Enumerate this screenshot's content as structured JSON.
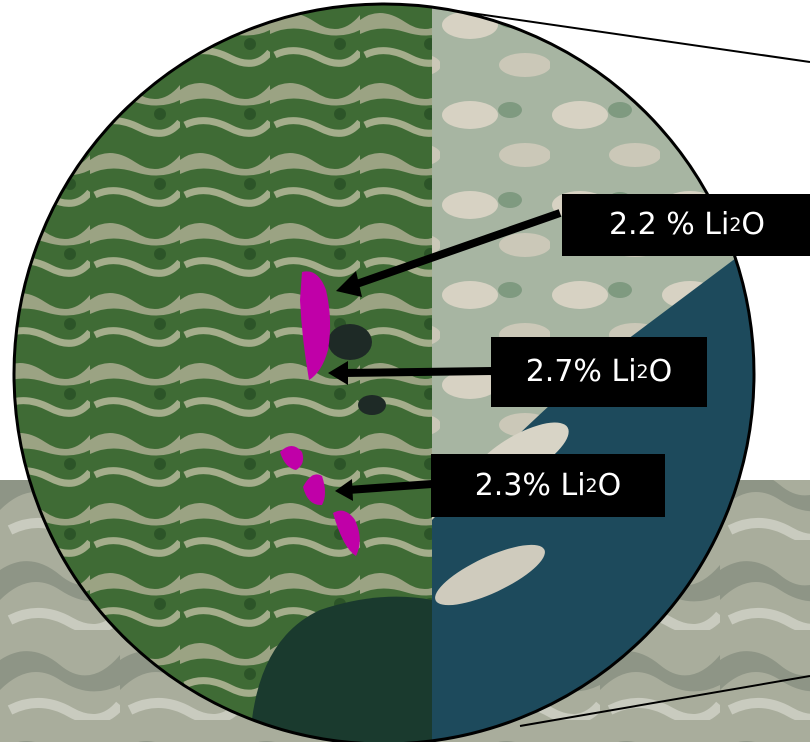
{
  "map": {
    "grade_labels": [
      {
        "value": "2.2 %",
        "species_main": "Li",
        "species_sub": "2",
        "species_tail": "O"
      },
      {
        "value": "2.7%",
        "species_main": "Li",
        "species_sub": "2",
        "species_tail": "O"
      },
      {
        "value": "2.3%",
        "species_main": "Li",
        "species_sub": "2",
        "species_tail": "O"
      }
    ],
    "colors": {
      "forest": "#3f6b35",
      "outcrop": "#b9b59d",
      "water": "#1d4a5c",
      "deposit": "#c000a8",
      "callout": "#000000"
    }
  }
}
